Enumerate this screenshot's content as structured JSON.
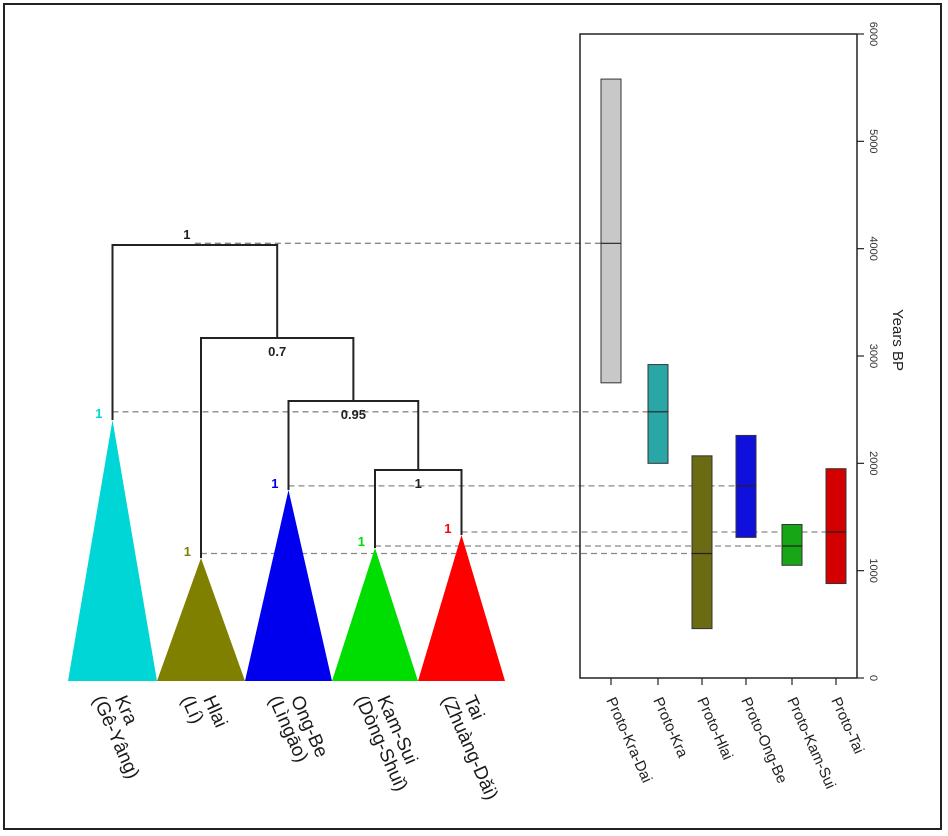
{
  "chart_data": [
    {
      "type": "tree",
      "clades": [
        {
          "key": "kra",
          "name": "Kra",
          "alt": "(Gê-Yâng)",
          "color": "#00d6d6",
          "support": "1"
        },
        {
          "key": "hlai",
          "name": "Hlai",
          "alt": "(Lí)",
          "color": "#7f7f00",
          "support": "1"
        },
        {
          "key": "ongbe",
          "name": "Ong-Be",
          "alt": "(Lìngāo)",
          "color": "#0000ee",
          "support": "1"
        },
        {
          "key": "kamsui",
          "name": "Kam-Sui",
          "alt": "(Dòng-Shuǐ)",
          "color": "#00dd00",
          "support": "1"
        },
        {
          "key": "tai",
          "name": "Tai",
          "alt": "(Zhuàng-Dǎi)",
          "color": "#ff0000",
          "support": "1"
        }
      ],
      "internal_nodes": [
        {
          "key": "root",
          "support": "1"
        },
        {
          "key": "hlai_rest",
          "support": "0.7"
        },
        {
          "key": "ongbe_rest",
          "support": "0.95"
        },
        {
          "key": "kamsui_tai",
          "support": "1"
        }
      ]
    },
    {
      "type": "box",
      "ylabel": "Years BP",
      "ylim": [
        0,
        6000
      ],
      "yticks": [
        "0",
        "1000",
        "2000",
        "3000",
        "4000",
        "5000",
        "6000"
      ],
      "categories": [
        "Proto-Kra-Dai",
        "Proto-Kra",
        "Proto-Hlai",
        "Proto-Ong-Be",
        "Proto-Kam-Sui",
        "Proto-Tai"
      ],
      "boxes": [
        {
          "name": "Proto-Kra-Dai",
          "low": 2750,
          "median": 4050,
          "high": 5580,
          "color": "#c8c8c8"
        },
        {
          "name": "Proto-Kra",
          "low": 2000,
          "median": 2480,
          "high": 2920,
          "color": "#2aa6a6"
        },
        {
          "name": "Proto-Hlai",
          "low": 460,
          "median": 1160,
          "high": 2070,
          "color": "#6b6b14"
        },
        {
          "name": "Proto-Ong-Be",
          "low": 1310,
          "median": 1790,
          "high": 2260,
          "color": "#1010dd"
        },
        {
          "name": "Proto-Kam-Sui",
          "low": 1050,
          "median": 1230,
          "high": 1430,
          "color": "#16a616"
        },
        {
          "name": "Proto-Tai",
          "low": 880,
          "median": 1360,
          "high": 1950,
          "color": "#d40000"
        }
      ]
    }
  ]
}
